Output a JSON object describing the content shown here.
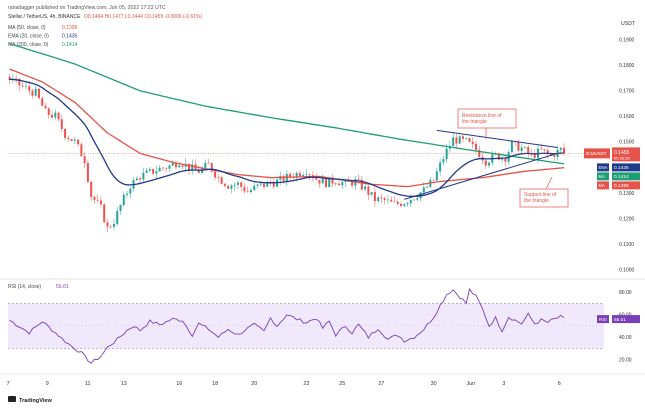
{
  "header": {
    "publisher": "ranadagger published on TradingView.com, Jun 05, 2022 17:23 UTC",
    "symbol_line": "Stellar / TetherUS, 4h, BINANCE",
    "ohlc": "O0.1464 H0.1477 L0.1444 C0.1455 -0.0009 (-0.61%)",
    "currency": "USDT"
  },
  "legend": [
    {
      "label": "MA (50, close, 0)",
      "value": "0.1399",
      "color": "#e5534b"
    },
    {
      "label": "EMA (20, close, 0)",
      "value": "0.1435",
      "color": "#1e3a8a"
    },
    {
      "label": "MA (200, close, 0)",
      "value": "0.1414",
      "color": "#1f9d74"
    }
  ],
  "rsi_legend": {
    "label": "RSI (14, close)",
    "value": "56.01",
    "color": "#7b3fb7"
  },
  "footer": {
    "brand": "TradingView"
  },
  "annotations": {
    "resistance": "Resistance line of the triangle",
    "support": "Support line of the triangle"
  },
  "chart_data": {
    "type": "candlestick",
    "title": "Stellar / TetherUS, 4h, BINANCE",
    "price_axis": {
      "ticks": [
        "0.1900",
        "0.1800",
        "0.1700",
        "0.1600",
        "0.1500",
        "0.1400",
        "0.1300",
        "0.1200",
        "0.1100",
        "0.1000"
      ],
      "ylim": [
        0.0975,
        0.1985
      ]
    },
    "rsi_axis": {
      "ticks": [
        "80.00",
        "60.00",
        "40.00",
        "20.00"
      ],
      "ylim": [
        10,
        88
      ],
      "bands": [
        30,
        70
      ]
    },
    "x_ticks": [
      {
        "label": "7",
        "i": 0
      },
      {
        "label": "9",
        "i": 12
      },
      {
        "label": "11",
        "i": 24
      },
      {
        "label": "13",
        "i": 35
      },
      {
        "label": "16",
        "i": 52
      },
      {
        "label": "18",
        "i": 63
      },
      {
        "label": "20",
        "i": 75
      },
      {
        "label": "23",
        "i": 91
      },
      {
        "label": "25",
        "i": 102
      },
      {
        "label": "27",
        "i": 114
      },
      {
        "label": "30",
        "i": 130
      },
      {
        "label": "Jun",
        "i": 141
      },
      {
        "label": "3",
        "i": 152
      },
      {
        "label": "6",
        "i": 169
      }
    ],
    "n_slots": 176,
    "last_price": {
      "label": "XLMUSDT",
      "value": "0.1455",
      "sub": "00:36:39",
      "color": "#e5534b"
    },
    "value_tags": [
      {
        "tag": "EMA",
        "value": "0.1435",
        "color": "#1e3a8a"
      },
      {
        "tag": "MA",
        "value": "0.1414",
        "color": "#1f9d74"
      },
      {
        "tag": "MA",
        "value": "0.1399",
        "color": "#e5534b"
      }
    ],
    "rsi_last": {
      "tag": "RSI",
      "value": "56.01"
    },
    "close_key": [
      [
        0,
        0.1745
      ],
      [
        4,
        0.1715
      ],
      [
        8,
        0.169
      ],
      [
        11,
        0.1615
      ],
      [
        14,
        0.16
      ],
      [
        17,
        0.153
      ],
      [
        20,
        0.15
      ],
      [
        23,
        0.143
      ],
      [
        25,
        0.129
      ],
      [
        28,
        0.124
      ],
      [
        30,
        0.116
      ],
      [
        32,
        0.119
      ],
      [
        34,
        0.125
      ],
      [
        37,
        0.133
      ],
      [
        40,
        0.1365
      ],
      [
        43,
        0.138
      ],
      [
        46,
        0.1395
      ],
      [
        49,
        0.1405
      ],
      [
        52,
        0.1425
      ],
      [
        55,
        0.14
      ],
      [
        58,
        0.1385
      ],
      [
        61,
        0.141
      ],
      [
        64,
        0.136
      ],
      [
        67,
        0.133
      ],
      [
        70,
        0.1335
      ],
      [
        73,
        0.1305
      ],
      [
        76,
        0.1325
      ],
      [
        79,
        0.1335
      ],
      [
        82,
        0.1345
      ],
      [
        85,
        0.136
      ],
      [
        88,
        0.1375
      ],
      [
        91,
        0.139
      ],
      [
        94,
        0.1355
      ],
      [
        97,
        0.134
      ],
      [
        100,
        0.135
      ],
      [
        103,
        0.1335
      ],
      [
        106,
        0.1345
      ],
      [
        109,
        0.1315
      ],
      [
        112,
        0.1275
      ],
      [
        115,
        0.127
      ],
      [
        118,
        0.1255
      ],
      [
        121,
        0.1265
      ],
      [
        124,
        0.1285
      ],
      [
        127,
        0.131
      ],
      [
        130,
        0.135
      ],
      [
        132,
        0.141
      ],
      [
        134,
        0.1465
      ],
      [
        136,
        0.151
      ],
      [
        138,
        0.1505
      ],
      [
        140,
        0.15
      ],
      [
        143,
        0.147
      ],
      [
        146,
        0.1425
      ],
      [
        149,
        0.1445
      ],
      [
        152,
        0.144
      ],
      [
        154,
        0.149
      ],
      [
        157,
        0.1475
      ],
      [
        160,
        0.1445
      ],
      [
        163,
        0.1465
      ],
      [
        166,
        0.1445
      ],
      [
        169,
        0.147
      ],
      [
        170,
        0.1455
      ]
    ],
    "ma200_key": [
      [
        0,
        0.1885
      ],
      [
        20,
        0.1805
      ],
      [
        40,
        0.17
      ],
      [
        60,
        0.164
      ],
      [
        80,
        0.1595
      ],
      [
        100,
        0.1555
      ],
      [
        120,
        0.151
      ],
      [
        140,
        0.147
      ],
      [
        170,
        0.1414
      ]
    ],
    "ma50_key": [
      [
        0,
        0.1785
      ],
      [
        10,
        0.1735
      ],
      [
        20,
        0.1655
      ],
      [
        30,
        0.1535
      ],
      [
        40,
        0.1455
      ],
      [
        50,
        0.142
      ],
      [
        60,
        0.1395
      ],
      [
        70,
        0.1372
      ],
      [
        80,
        0.136
      ],
      [
        95,
        0.1365
      ],
      [
        110,
        0.1335
      ],
      [
        122,
        0.1325
      ],
      [
        132,
        0.1345
      ],
      [
        145,
        0.136
      ],
      [
        158,
        0.1385
      ],
      [
        170,
        0.1399
      ]
    ],
    "rsi_key": [
      [
        0,
        55
      ],
      [
        6,
        44
      ],
      [
        10,
        54
      ],
      [
        14,
        44
      ],
      [
        18,
        34
      ],
      [
        22,
        26
      ],
      [
        25,
        17
      ],
      [
        28,
        23
      ],
      [
        30,
        31
      ],
      [
        33,
        38
      ],
      [
        36,
        46
      ],
      [
        38,
        50
      ],
      [
        40,
        46
      ],
      [
        43,
        54
      ],
      [
        46,
        51
      ],
      [
        50,
        56
      ],
      [
        53,
        55
      ],
      [
        56,
        42
      ],
      [
        58,
        52
      ],
      [
        61,
        47
      ],
      [
        64,
        40
      ],
      [
        67,
        47
      ],
      [
        70,
        42
      ],
      [
        72,
        46
      ],
      [
        75,
        51
      ],
      [
        78,
        45
      ],
      [
        80,
        57
      ],
      [
        82,
        50
      ],
      [
        85,
        60
      ],
      [
        88,
        56
      ],
      [
        91,
        53
      ],
      [
        94,
        57
      ],
      [
        96,
        48
      ],
      [
        98,
        54
      ],
      [
        100,
        42
      ],
      [
        103,
        50
      ],
      [
        105,
        44
      ],
      [
        107,
        51
      ],
      [
        110,
        40
      ],
      [
        113,
        48
      ],
      [
        116,
        38
      ],
      [
        119,
        42
      ],
      [
        121,
        37
      ],
      [
        124,
        40
      ],
      [
        127,
        47
      ],
      [
        130,
        58
      ],
      [
        132,
        68
      ],
      [
        134,
        78
      ],
      [
        136,
        82
      ],
      [
        138,
        76
      ],
      [
        140,
        70
      ],
      [
        141,
        82
      ],
      [
        143,
        76
      ],
      [
        145,
        65
      ],
      [
        147,
        50
      ],
      [
        149,
        57
      ],
      [
        151,
        46
      ],
      [
        153,
        58
      ],
      [
        155,
        55
      ],
      [
        157,
        52
      ],
      [
        159,
        60
      ],
      [
        161,
        52
      ],
      [
        163,
        55
      ],
      [
        165,
        53
      ],
      [
        167,
        56
      ],
      [
        169,
        58
      ],
      [
        170,
        56
      ]
    ],
    "trendlines": {
      "resistance": [
        [
          131,
          0.1545
        ],
        [
          168,
          0.1478
        ]
      ],
      "support": [
        [
          121,
          0.1275
        ],
        [
          168,
          0.1455
        ]
      ]
    }
  }
}
